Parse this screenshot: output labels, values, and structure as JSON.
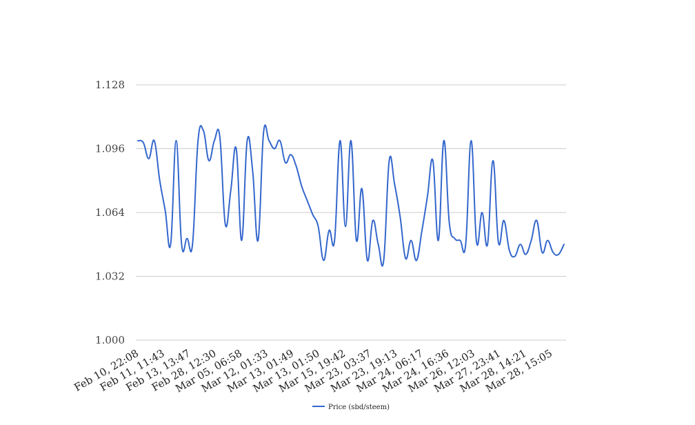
{
  "chart_data": {
    "type": "line",
    "title": "",
    "xlabel": "",
    "ylabel": "",
    "ylim": [
      1.0,
      1.128
    ],
    "yticks": [
      "1.000",
      "1.032",
      "1.064",
      "1.096",
      "1.128"
    ],
    "ytick_values": [
      1.0,
      1.032,
      1.064,
      1.096,
      1.128
    ],
    "xtick_labels": [
      "Feb 10, 22:08",
      "Feb 11, 11:43",
      "Feb 13, 13:47",
      "Feb 28, 12:30",
      "Mar 05, 06:58",
      "Mar 12, 01:33",
      "Mar 13, 01:49",
      "Mar 13, 01:50",
      "Mar 15, 19:42",
      "Mar 23, 03:37",
      "Mar 23, 19:13",
      "Mar 24, 06:17",
      "Mar 24, 16:36",
      "Mar 26, 12:03",
      "Mar 27, 23:41",
      "Mar 28, 14:21",
      "Mar 28, 15:05"
    ],
    "grid": true,
    "legend_position": "bottom",
    "color": "#3366cc",
    "series": [
      {
        "name": "Price (sbd/steem)",
        "values": [
          1.1,
          1.099,
          1.091,
          1.1,
          1.08,
          1.065,
          1.048,
          1.1,
          1.048,
          1.051,
          1.048,
          1.1,
          1.105,
          1.09,
          1.1,
          1.102,
          1.058,
          1.075,
          1.096,
          1.05,
          1.1,
          1.085,
          1.05,
          1.104,
          1.1,
          1.096,
          1.1,
          1.089,
          1.093,
          1.087,
          1.077,
          1.07,
          1.063,
          1.057,
          1.04,
          1.055,
          1.05,
          1.1,
          1.057,
          1.1,
          1.05,
          1.076,
          1.04,
          1.06,
          1.048,
          1.04,
          1.09,
          1.078,
          1.062,
          1.041,
          1.05,
          1.04,
          1.055,
          1.072,
          1.09,
          1.05,
          1.1,
          1.059,
          1.051,
          1.05,
          1.048,
          1.1,
          1.049,
          1.064,
          1.048,
          1.09,
          1.049,
          1.06,
          1.045,
          1.042,
          1.048,
          1.043,
          1.05,
          1.06,
          1.044,
          1.05,
          1.044,
          1.043,
          1.048
        ]
      }
    ]
  }
}
